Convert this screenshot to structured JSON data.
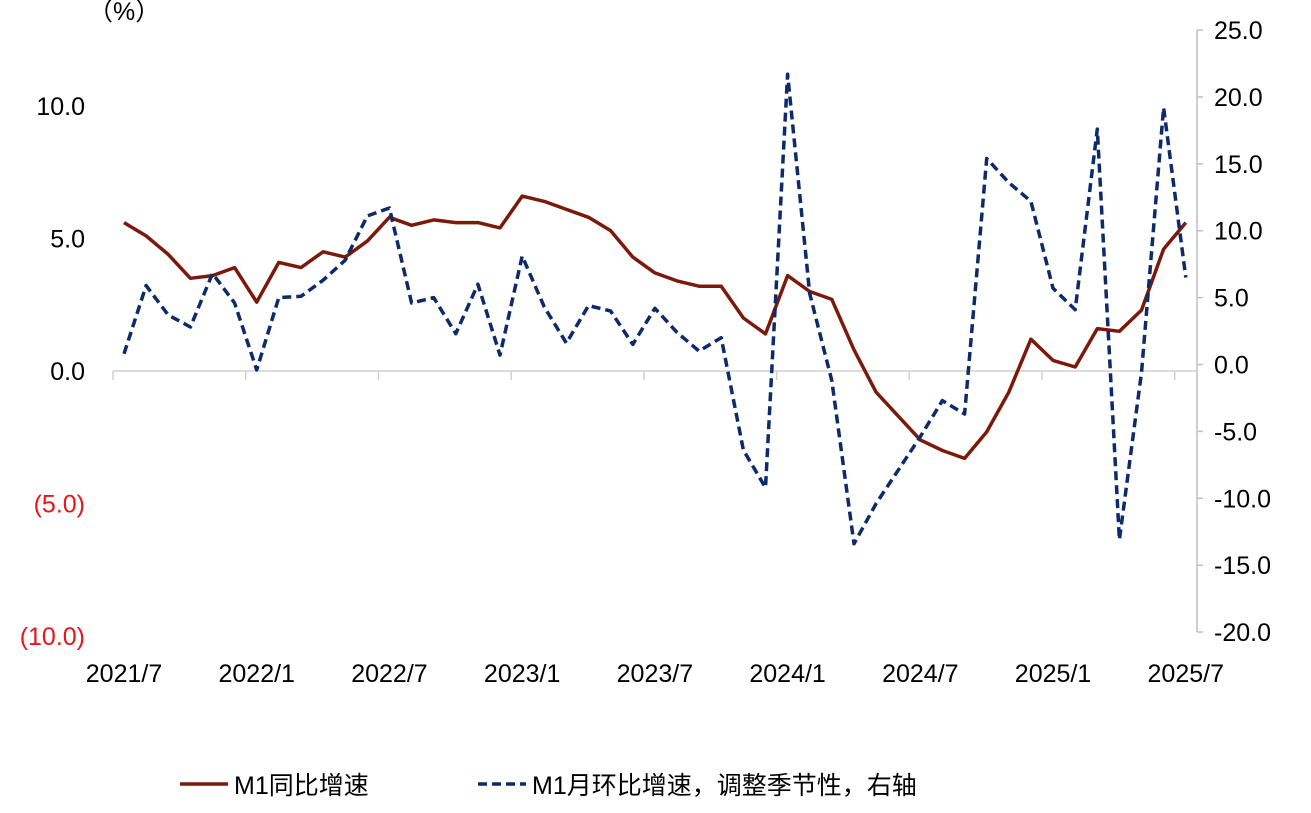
{
  "chart_data": {
    "type": "line",
    "unit_label": "（%）",
    "x": [
      "2021/7",
      "2021/8",
      "2021/9",
      "2021/10",
      "2021/11",
      "2021/12",
      "2022/1",
      "2022/2",
      "2022/3",
      "2022/4",
      "2022/5",
      "2022/6",
      "2022/7",
      "2022/8",
      "2022/9",
      "2022/10",
      "2022/11",
      "2022/12",
      "2023/1",
      "2023/2",
      "2023/3",
      "2023/4",
      "2023/5",
      "2023/6",
      "2023/7",
      "2023/8",
      "2023/9",
      "2023/10",
      "2023/11",
      "2023/12",
      "2024/1",
      "2024/2",
      "2024/3",
      "2024/4",
      "2024/5",
      "2024/6",
      "2024/7",
      "2024/8",
      "2024/9",
      "2024/10",
      "2024/11",
      "2024/12",
      "2025/1",
      "2025/2",
      "2025/3",
      "2025/4",
      "2025/5",
      "2025/6",
      "2025/7"
    ],
    "x_tick_labels": [
      "2021/7",
      "2022/1",
      "2022/7",
      "2023/1",
      "2023/7",
      "2024/1",
      "2024/7",
      "2025/1",
      "2025/7"
    ],
    "left_axis": {
      "ylim": [
        -10,
        12.5
      ],
      "ticks": [
        10,
        5,
        0,
        -5,
        -10
      ],
      "tick_labels": [
        "10.0",
        "5.0",
        "0.0",
        "(5.0)",
        "(10.0)"
      ],
      "negative_color": "#e8141b"
    },
    "right_axis": {
      "ylim": [
        -20,
        25
      ],
      "ticks": [
        25,
        20,
        15,
        10,
        5,
        0,
        -5,
        -10,
        -15,
        -20
      ],
      "tick_labels": [
        "25.0",
        "20.0",
        "15.0",
        "10.0",
        "5.0",
        "0.0",
        "-5.0",
        "-10.0",
        "-15.0",
        "-20.0"
      ]
    },
    "series": [
      {
        "name": "M1同比增速",
        "axis": "left",
        "style": "solid",
        "color": "#7b1a0a",
        "values": [
          5.6,
          5.1,
          4.4,
          3.5,
          3.6,
          3.9,
          2.6,
          4.1,
          3.9,
          4.5,
          4.3,
          4.9,
          5.8,
          5.5,
          5.7,
          5.6,
          5.6,
          5.4,
          6.6,
          6.4,
          6.1,
          5.8,
          5.3,
          4.3,
          3.7,
          3.4,
          3.2,
          3.2,
          2.0,
          1.4,
          3.6,
          3.0,
          2.7,
          0.8,
          -0.8,
          -1.7,
          -2.6,
          -3.0,
          -3.3,
          -2.3,
          -0.8,
          1.2,
          0.4,
          0.15,
          1.6,
          1.5,
          2.3,
          4.6,
          5.6
        ]
      },
      {
        "name": "M1月环比增速，调整季节性，右轴",
        "axis": "right",
        "style": "dashed",
        "color": "#0d2a6b",
        "values": [
          0.8,
          5.9,
          3.7,
          2.8,
          6.8,
          4.6,
          -0.4,
          5.0,
          5.1,
          6.3,
          7.8,
          11.1,
          11.7,
          4.6,
          5.0,
          2.3,
          6.0,
          0.7,
          8.1,
          4.3,
          1.6,
          4.4,
          4.0,
          1.5,
          4.2,
          2.4,
          1.0,
          2.0,
          -6.4,
          -9.2,
          21.7,
          5.3,
          -1.2,
          -13.4,
          -10.4,
          -7.9,
          -5.4,
          -2.7,
          -3.7,
          15.4,
          13.6,
          12.2,
          5.7,
          4.1,
          17.6,
          -13.1,
          -0.6,
          19.2,
          6.5
        ]
      }
    ],
    "legend_position": "bottom",
    "grid": false
  }
}
